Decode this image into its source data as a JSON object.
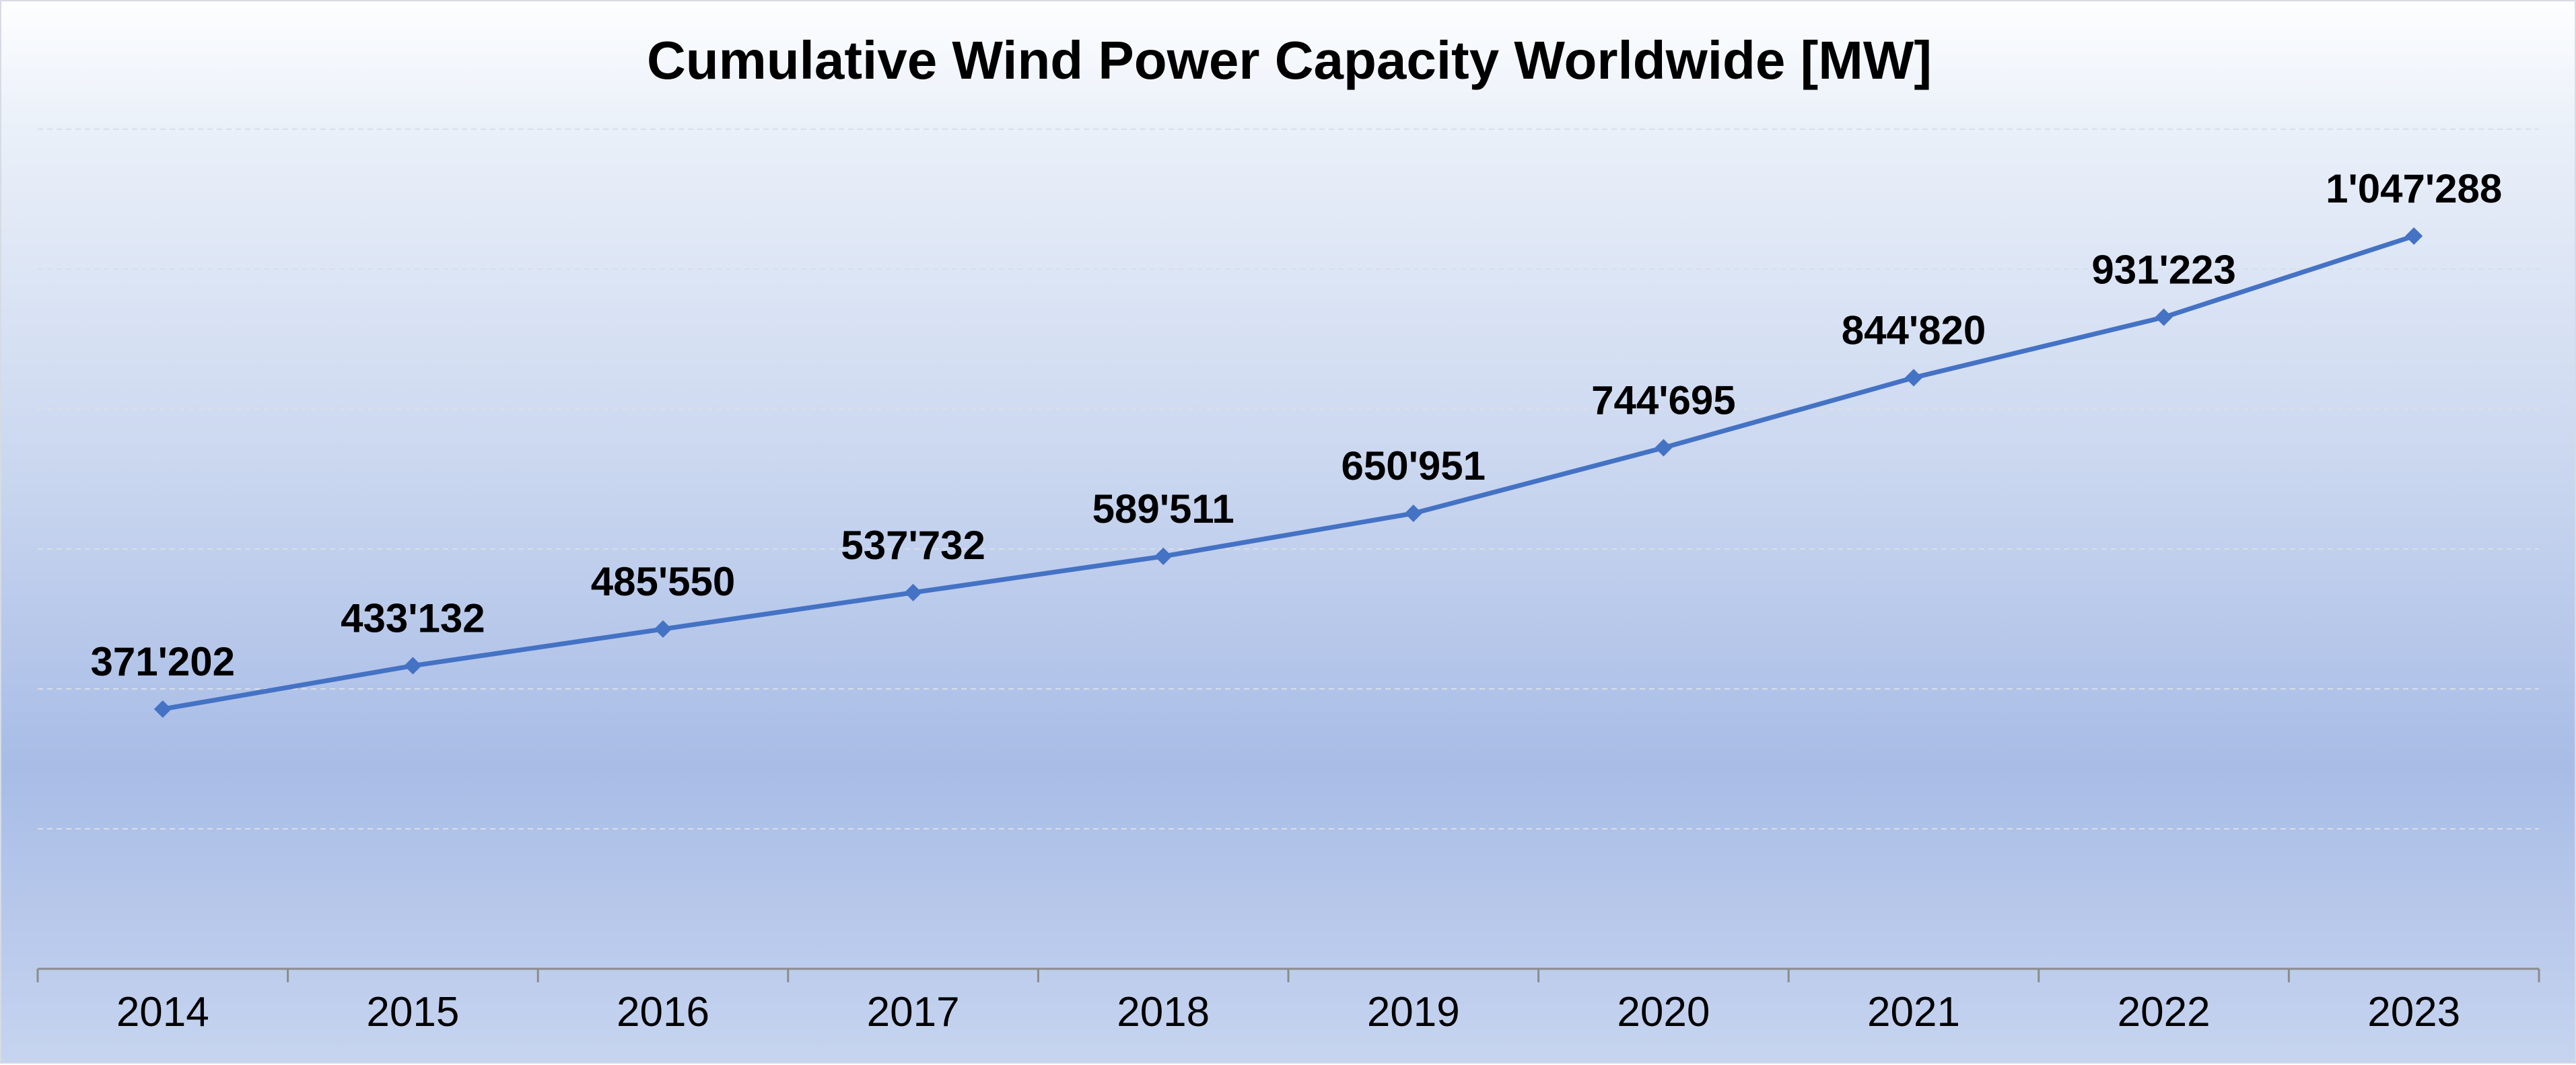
{
  "chart_data": {
    "type": "line",
    "title": "Cumulative Wind Power Capacity Worldwide [MW]",
    "xlabel": "",
    "ylabel": "",
    "categories": [
      "2014",
      "2015",
      "2016",
      "2017",
      "2018",
      "2019",
      "2020",
      "2021",
      "2022",
      "2023"
    ],
    "series": [
      {
        "values": [
          371202,
          433132,
          485550,
          537732,
          589511,
          650951,
          744695,
          844820,
          931223,
          1047288
        ],
        "labels": [
          "371'202",
          "433'132",
          "485'550",
          "537'732",
          "589'511",
          "650'951",
          "744'695",
          "844'820",
          "931'223",
          "1'047'288"
        ],
        "color": "#4472c4",
        "marker": "diamond"
      }
    ],
    "ylim": [
      0,
      1200000
    ],
    "y_tick_labels_shown": false,
    "grid": true,
    "legend": "none"
  },
  "colors": {
    "line": "#4472c4",
    "gridline": "#d9dee8",
    "axis": "#8c8c8c"
  }
}
